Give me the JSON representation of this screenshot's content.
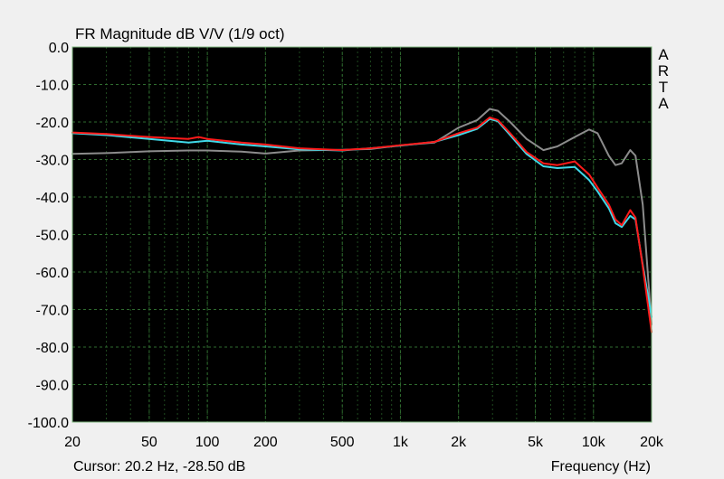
{
  "title": "FR Magnitude dB V/V (1/9 oct)",
  "brand_letters": [
    "A",
    "R",
    "T",
    "A"
  ],
  "cursor_readout": "Cursor: 20.2 Hz, -28.50 dB",
  "frequency_label": "Frequency (Hz)",
  "colors": {
    "plot_background": "#000000",
    "major_grid": "#2f6b2f",
    "minor_grid": "#1f4a1f",
    "border": "#7fb97f"
  },
  "chart_data": {
    "type": "line",
    "xscale": "log",
    "xlim": [
      20,
      20000
    ],
    "ylim": [
      -100,
      0
    ],
    "grid": true,
    "x_tick_labels": [
      {
        "value": 20,
        "label": "20"
      },
      {
        "value": 50,
        "label": "50"
      },
      {
        "value": 100,
        "label": "100"
      },
      {
        "value": 200,
        "label": "200"
      },
      {
        "value": 500,
        "label": "500"
      },
      {
        "value": 1000,
        "label": "1k"
      },
      {
        "value": 2000,
        "label": "2k"
      },
      {
        "value": 5000,
        "label": "5k"
      },
      {
        "value": 10000,
        "label": "10k"
      },
      {
        "value": 20000,
        "label": "20k"
      }
    ],
    "y_tick_labels": [
      {
        "value": 0,
        "label": "0.0"
      },
      {
        "value": -10,
        "label": "-10.0"
      },
      {
        "value": -20,
        "label": "-20.0"
      },
      {
        "value": -30,
        "label": "-30.0"
      },
      {
        "value": -40,
        "label": "-40.0"
      },
      {
        "value": -50,
        "label": "-50.0"
      },
      {
        "value": -60,
        "label": "-60.0"
      },
      {
        "value": -70,
        "label": "-70.0"
      },
      {
        "value": -80,
        "label": "-80.0"
      },
      {
        "value": -90,
        "label": "-90.0"
      },
      {
        "value": -100,
        "label": "-100.0"
      }
    ],
    "series": [
      {
        "color": "#8c8c8c",
        "points": [
          [
            20,
            -28.5
          ],
          [
            30,
            -28.3
          ],
          [
            50,
            -27.8
          ],
          [
            80,
            -27.6
          ],
          [
            100,
            -27.6
          ],
          [
            150,
            -27.9
          ],
          [
            200,
            -28.4
          ],
          [
            300,
            -27.6
          ],
          [
            500,
            -27.4
          ],
          [
            700,
            -27.2
          ],
          [
            1000,
            -26.2
          ],
          [
            1500,
            -25.5
          ],
          [
            2000,
            -21.5
          ],
          [
            2500,
            -19.5
          ],
          [
            2900,
            -16.5
          ],
          [
            3200,
            -17.0
          ],
          [
            3700,
            -20.0
          ],
          [
            4500,
            -24.5
          ],
          [
            5500,
            -27.5
          ],
          [
            6500,
            -26.5
          ],
          [
            8000,
            -24.0
          ],
          [
            9500,
            -22.0
          ],
          [
            10500,
            -23.0
          ],
          [
            12000,
            -29.0
          ],
          [
            13000,
            -31.5
          ],
          [
            14000,
            -31.0
          ],
          [
            15500,
            -27.5
          ],
          [
            16500,
            -29.0
          ],
          [
            18000,
            -42.0
          ],
          [
            20000,
            -74.0
          ]
        ]
      },
      {
        "color": "#40d8e8",
        "points": [
          [
            20,
            -23.0
          ],
          [
            30,
            -23.5
          ],
          [
            50,
            -24.5
          ],
          [
            80,
            -25.5
          ],
          [
            100,
            -25.0
          ],
          [
            150,
            -26.0
          ],
          [
            200,
            -26.5
          ],
          [
            300,
            -27.3
          ],
          [
            500,
            -27.6
          ],
          [
            700,
            -27.0
          ],
          [
            1000,
            -26.3
          ],
          [
            1500,
            -25.3
          ],
          [
            2000,
            -23.5
          ],
          [
            2500,
            -21.8
          ],
          [
            2900,
            -19.2
          ],
          [
            3200,
            -19.8
          ],
          [
            3700,
            -23.5
          ],
          [
            4500,
            -28.5
          ],
          [
            5500,
            -31.8
          ],
          [
            6500,
            -32.3
          ],
          [
            8000,
            -32.0
          ],
          [
            9500,
            -35.5
          ],
          [
            10500,
            -38.5
          ],
          [
            12000,
            -43.0
          ],
          [
            13000,
            -47.0
          ],
          [
            14000,
            -48.0
          ],
          [
            15500,
            -45.0
          ],
          [
            16500,
            -46.0
          ],
          [
            18000,
            -58.0
          ],
          [
            20000,
            -72.0
          ]
        ]
      },
      {
        "color": "#ff1a1a",
        "points": [
          [
            20,
            -22.8
          ],
          [
            30,
            -23.2
          ],
          [
            50,
            -24.0
          ],
          [
            80,
            -24.5
          ],
          [
            90,
            -24.0
          ],
          [
            100,
            -24.5
          ],
          [
            150,
            -25.5
          ],
          [
            200,
            -26.0
          ],
          [
            300,
            -27.0
          ],
          [
            500,
            -27.5
          ],
          [
            700,
            -27.0
          ],
          [
            1000,
            -26.2
          ],
          [
            1500,
            -25.3
          ],
          [
            2000,
            -23.0
          ],
          [
            2500,
            -21.5
          ],
          [
            2900,
            -18.8
          ],
          [
            3200,
            -19.5
          ],
          [
            3700,
            -23.0
          ],
          [
            4500,
            -28.0
          ],
          [
            5500,
            -31.0
          ],
          [
            6500,
            -31.5
          ],
          [
            8000,
            -30.5
          ],
          [
            9500,
            -34.0
          ],
          [
            10500,
            -37.5
          ],
          [
            12000,
            -42.0
          ],
          [
            13000,
            -46.0
          ],
          [
            14000,
            -47.5
          ],
          [
            15500,
            -43.5
          ],
          [
            16500,
            -45.5
          ],
          [
            18000,
            -58.5
          ],
          [
            20000,
            -76.0
          ]
        ]
      }
    ]
  }
}
